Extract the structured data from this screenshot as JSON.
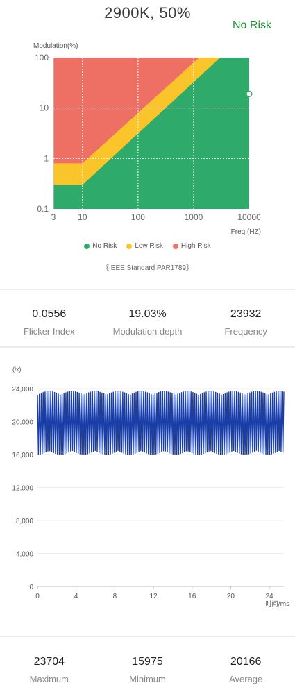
{
  "header": {
    "title": "2900K, 50%",
    "risk_status": "No Risk",
    "risk_status_color": "#1a8f2f"
  },
  "colors": {
    "no_risk": "#2eaa6b",
    "low_risk": "#f9c52a",
    "high_risk": "#ee7065",
    "wave": "#1a3ea8"
  },
  "legend": [
    {
      "label": "No Risk",
      "color": "#2eaa6b"
    },
    {
      "label": "Low Risk",
      "color": "#f9c52a"
    },
    {
      "label": "High Risk",
      "color": "#ee7065"
    }
  ],
  "standard_note": "《IEEE Standard PAR1789》",
  "flicker_stats": [
    {
      "value": "0.0556",
      "label": "Flicker Index"
    },
    {
      "value": "19.03%",
      "label": "Modulation depth"
    },
    {
      "value": "23932",
      "label": "Frequency"
    }
  ],
  "summary_stats": [
    {
      "value": "23704",
      "label": "Maximum"
    },
    {
      "value": "15975",
      "label": "Minimum"
    },
    {
      "value": "20166",
      "label": "Average"
    }
  ],
  "chart_data": [
    {
      "type": "area",
      "scale": "log-log",
      "ylabel": "Modulation(%)",
      "xlabel": "Freq.(HZ)",
      "xlim": [
        3,
        10000
      ],
      "ylim": [
        0.1,
        100
      ],
      "x_ticks": [
        "3",
        "10",
        "100",
        "1000",
        "10000"
      ],
      "y_ticks": [
        "0.1",
        "1",
        "10",
        "100"
      ],
      "grid": true,
      "regions": [
        {
          "name": "No Risk",
          "upper_boundary": [
            [
              3,
              0.3
            ],
            [
              10,
              0.3
            ],
            [
              3000,
              100
            ]
          ]
        },
        {
          "name": "Low Risk",
          "upper_boundary": [
            [
              3,
              0.8
            ],
            [
              10,
              0.8
            ],
            [
              1250,
              100
            ]
          ]
        },
        {
          "name": "High Risk",
          "upper_boundary": [
            [
              3,
              100
            ],
            [
              10000,
              100
            ]
          ]
        }
      ],
      "measurement": {
        "frequency": 23932,
        "modulation": 19.03
      }
    },
    {
      "type": "line",
      "ylabel": "(lx)",
      "xlabel": "时间/ms",
      "xlim": [
        0,
        25.5
      ],
      "ylim": [
        0,
        24000
      ],
      "x_ticks": [
        "0",
        "4",
        "8",
        "12",
        "16",
        "20",
        "24"
      ],
      "y_ticks": [
        "0",
        "4,000",
        "8,000",
        "12,000",
        "16,000",
        "20,000",
        "24,000"
      ],
      "grid": true,
      "series": [
        {
          "max": 23704,
          "min": 15975,
          "average": 20166,
          "frequency_hz": 23932
        }
      ]
    }
  ]
}
